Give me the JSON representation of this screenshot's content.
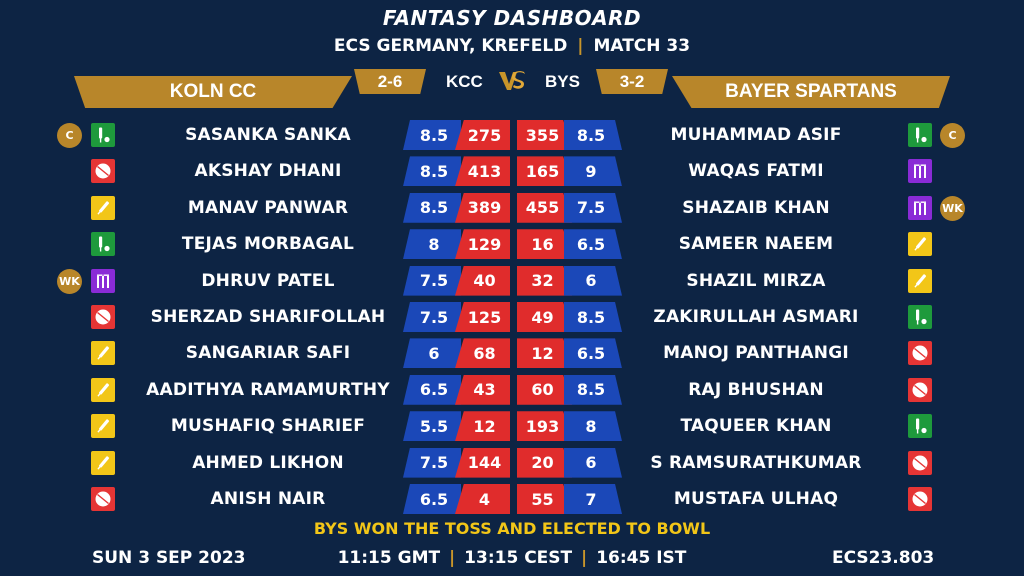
{
  "title": "FANTASY DASHBOARD",
  "subtitle": {
    "event": "ECS GERMANY, KREFELD",
    "separator": "|",
    "match": "MATCH 33"
  },
  "teams": {
    "left": {
      "name": "KOLN CC",
      "abbr": "KCC",
      "score": "2-6"
    },
    "right": {
      "name": "BAYER SPARTANS",
      "abbr": "BYS",
      "score": "3-2"
    }
  },
  "colors": {
    "background": "#0d2444",
    "gold": "#b8862a",
    "credit_blue": "#1b48b8",
    "points_red": "#e02c2c",
    "batter_yellow": "#f2c618",
    "bowler_red": "#e53535",
    "allrounder_green": "#1e9a3c",
    "keeper_purple": "#8a2bd6"
  },
  "players": [
    {
      "left": {
        "name": "SASANKA SANKA",
        "credit": "8.5",
        "points": "275",
        "role": "allrounder-icon",
        "badge": "C"
      },
      "right": {
        "name": "MUHAMMAD ASIF",
        "credit": "8.5",
        "points": "355",
        "role": "allrounder-icon",
        "badge": "C"
      }
    },
    {
      "left": {
        "name": "AKSHAY DHANI",
        "credit": "8.5",
        "points": "413",
        "role": "ball-icon",
        "badge": ""
      },
      "right": {
        "name": "WAQAS FATMI",
        "credit": "9",
        "points": "165",
        "role": "wicketkeeper-icon",
        "badge": ""
      }
    },
    {
      "left": {
        "name": "MANAV PANWAR",
        "credit": "8.5",
        "points": "389",
        "role": "bat-icon",
        "badge": ""
      },
      "right": {
        "name": "SHAZAIB KHAN",
        "credit": "7.5",
        "points": "455",
        "role": "wicketkeeper-icon",
        "badge": "WK"
      }
    },
    {
      "left": {
        "name": "TEJAS MORBAGAL",
        "credit": "8",
        "points": "129",
        "role": "allrounder-icon",
        "badge": ""
      },
      "right": {
        "name": "SAMEER NAEEM",
        "credit": "6.5",
        "points": "16",
        "role": "bat-icon",
        "badge": ""
      }
    },
    {
      "left": {
        "name": "DHRUV PATEL",
        "credit": "7.5",
        "points": "40",
        "role": "wicketkeeper-icon",
        "badge": "WK"
      },
      "right": {
        "name": "SHAZIL MIRZA",
        "credit": "6",
        "points": "32",
        "role": "bat-icon",
        "badge": ""
      }
    },
    {
      "left": {
        "name": "SHERZAD SHARIFOLLAH",
        "credit": "7.5",
        "points": "125",
        "role": "ball-icon",
        "badge": ""
      },
      "right": {
        "name": "ZAKIRULLAH ASMARI",
        "credit": "8.5",
        "points": "49",
        "role": "allrounder-icon",
        "badge": ""
      }
    },
    {
      "left": {
        "name": "SANGARIAR SAFI",
        "credit": "6",
        "points": "68",
        "role": "bat-icon",
        "badge": ""
      },
      "right": {
        "name": "MANOJ PANTHANGI",
        "credit": "6.5",
        "points": "12",
        "role": "ball-icon",
        "badge": ""
      }
    },
    {
      "left": {
        "name": "AADITHYA RAMAMURTHY",
        "credit": "6.5",
        "points": "43",
        "role": "bat-icon",
        "badge": ""
      },
      "right": {
        "name": "RAJ BHUSHAN",
        "credit": "8.5",
        "points": "60",
        "role": "ball-icon",
        "badge": ""
      }
    },
    {
      "left": {
        "name": "MUSHAFIQ SHARIEF",
        "credit": "5.5",
        "points": "12",
        "role": "bat-icon",
        "badge": ""
      },
      "right": {
        "name": "TAQUEER KHAN",
        "credit": "8",
        "points": "193",
        "role": "allrounder-icon",
        "badge": ""
      }
    },
    {
      "left": {
        "name": "AHMED LIKHON",
        "credit": "7.5",
        "points": "144",
        "role": "bat-icon",
        "badge": ""
      },
      "right": {
        "name": "S RAMSURATHKUMAR",
        "credit": "6",
        "points": "20",
        "role": "ball-icon",
        "badge": ""
      }
    },
    {
      "left": {
        "name": "ANISH NAIR",
        "credit": "6.5",
        "points": "4",
        "role": "ball-icon",
        "badge": ""
      },
      "right": {
        "name": "MUSTAFA ULHAQ",
        "credit": "7",
        "points": "55",
        "role": "ball-icon",
        "badge": ""
      }
    }
  ],
  "toss": "BYS WON THE TOSS AND ELECTED TO BOWL",
  "footer": {
    "date": "SUN 3 SEP 2023",
    "time_gmt": "11:15 GMT",
    "time_cest": "13:15 CEST",
    "time_ist": "16:45 IST",
    "separator": "|",
    "code": "ECS23.803"
  }
}
